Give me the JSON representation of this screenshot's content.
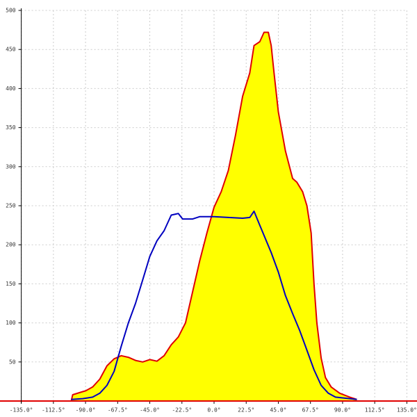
{
  "chart_data": {
    "type": "line",
    "xlim": [
      -135,
      135
    ],
    "ylim": [
      0,
      500
    ],
    "xticks": [
      {
        "value": -135,
        "label": "-135.0°"
      },
      {
        "value": -112.5,
        "label": "-112.5°"
      },
      {
        "value": -90,
        "label": "-90.0°"
      },
      {
        "value": -67.5,
        "label": "-67.5°"
      },
      {
        "value": -45,
        "label": "-45.0°"
      },
      {
        "value": -22.5,
        "label": "-22.5°"
      },
      {
        "value": 0,
        "label": "0.0°"
      },
      {
        "value": 22.5,
        "label": "22.5°"
      },
      {
        "value": 45,
        "label": "45.0°"
      },
      {
        "value": 67.5,
        "label": "67.5°"
      },
      {
        "value": 90,
        "label": "90.0°"
      },
      {
        "value": 112.5,
        "label": "112.5°"
      },
      {
        "value": 135,
        "label": "135.0°"
      }
    ],
    "yticks": [
      50,
      100,
      150,
      200,
      250,
      300,
      350,
      400,
      450,
      500
    ],
    "grid": true,
    "series": [
      {
        "color": "#e00000",
        "fill": "#ffff00",
        "x": [
          -100,
          -99,
          -92,
          -90,
          -85,
          -80,
          -75,
          -70,
          -65,
          -60,
          -55,
          -50,
          -45,
          -40,
          -35,
          -30,
          -25,
          -20,
          -15,
          -10,
          -5,
          0,
          5,
          10,
          15,
          20,
          25,
          28,
          32,
          35,
          38,
          40,
          42,
          45,
          50,
          55,
          58,
          62,
          65,
          68,
          70,
          72,
          75,
          78,
          82,
          88,
          95,
          100
        ],
        "values": [
          0,
          8,
          12,
          13,
          18,
          28,
          45,
          54,
          58,
          56,
          52,
          50,
          53,
          51,
          58,
          72,
          82,
          100,
          140,
          180,
          215,
          248,
          268,
          295,
          340,
          390,
          420,
          455,
          460,
          472,
          472,
          455,
          420,
          370,
          320,
          285,
          280,
          268,
          250,
          215,
          150,
          100,
          55,
          30,
          18,
          10,
          5,
          2
        ]
      },
      {
        "color": "#0000c0",
        "x": [
          -100,
          -92,
          -85,
          -80,
          -75,
          -70,
          -65,
          -60,
          -55,
          -50,
          -45,
          -40,
          -35,
          -30,
          -25,
          -22,
          -15,
          -10,
          0,
          10,
          20,
          25,
          28,
          32,
          40,
          45,
          50,
          55,
          60,
          65,
          70,
          75,
          80,
          85,
          100
        ],
        "values": [
          2,
          3,
          5,
          10,
          20,
          38,
          70,
          100,
          125,
          155,
          185,
          205,
          218,
          238,
          240,
          233,
          233,
          236,
          236,
          235,
          234,
          235,
          243,
          225,
          190,
          165,
          135,
          112,
          90,
          65,
          40,
          20,
          10,
          5,
          2
        ]
      }
    ]
  }
}
